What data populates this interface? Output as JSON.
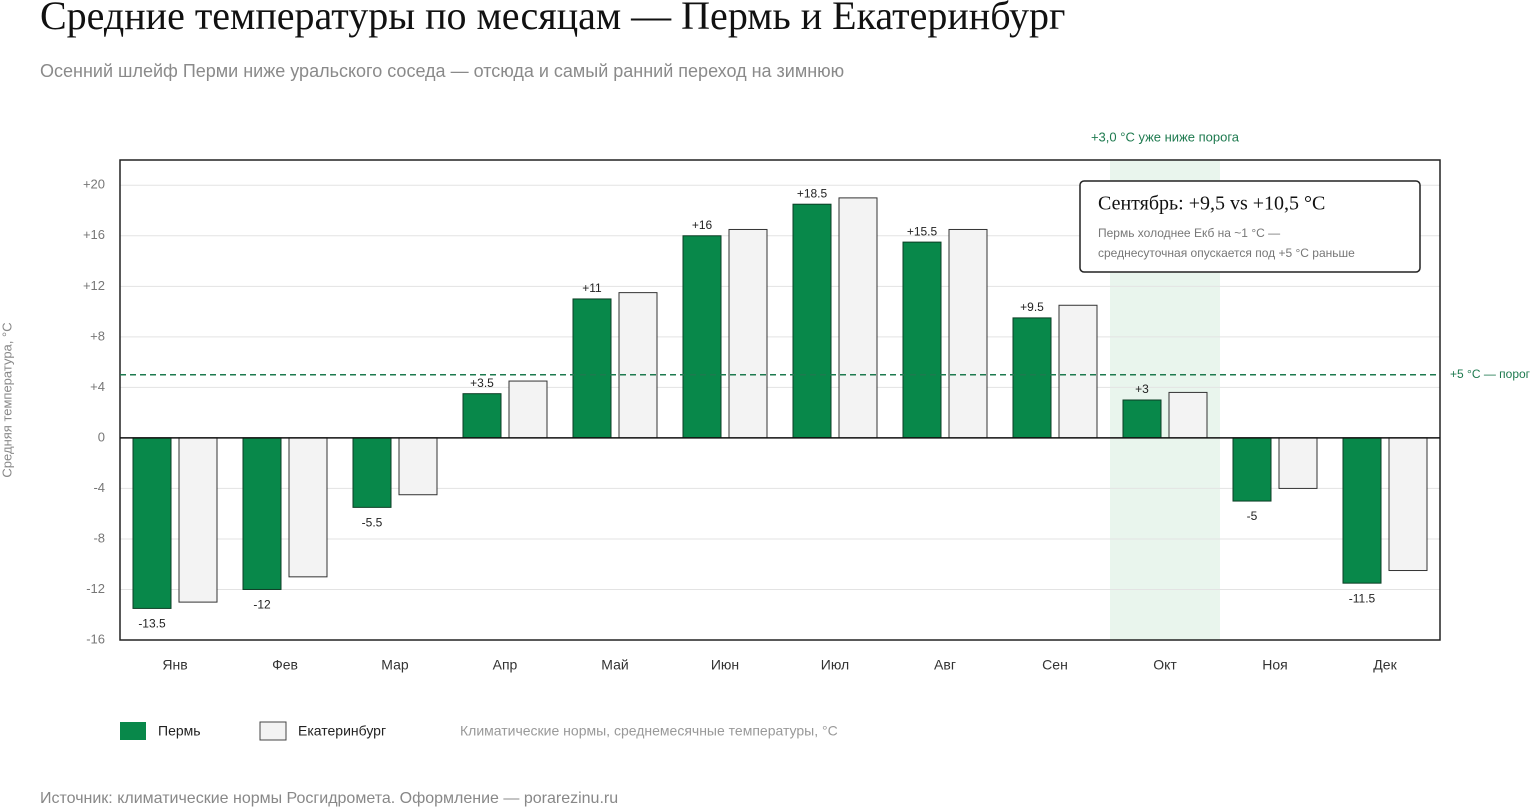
{
  "chart_data": {
    "type": "bar",
    "title": "Средние температуры по месяцам — Пермь и Екатеринбург",
    "subtitle": "Осенний шлейф Перми ниже уральского соседа — отсюда и самый ранний переход на зимнюю",
    "y_label": "Средняя температура, °C",
    "categories": [
      "Янв",
      "Фев",
      "Мар",
      "Апр",
      "Май",
      "Июн",
      "Июл",
      "Авг",
      "Сен",
      "Окт",
      "Ноя",
      "Дек"
    ],
    "series": [
      {
        "name": "Пермь",
        "color": "#08884a",
        "values": [
          -13.5,
          -12,
          -5.5,
          3.5,
          11,
          16,
          18.5,
          15.5,
          9.5,
          3,
          -5,
          -11.5
        ],
        "value_labels": [
          "-13.5",
          "-12",
          "-5.5",
          "+3.5",
          "+11",
          "+16",
          "+18.5",
          "+15.5",
          "+9.5",
          "+3",
          "-5",
          "-11.5"
        ]
      },
      {
        "name": "Екатеринбург",
        "color": "#f3f3f3",
        "values": [
          -13,
          -11,
          -4.5,
          4.5,
          11.5,
          16.5,
          19,
          16.5,
          10.5,
          3.6,
          -4,
          -10.5
        ]
      }
    ],
    "ylim": [
      -16,
      22
    ],
    "yticks": [
      -16,
      -12,
      -8,
      -4,
      0,
      {
        "value": 4,
        "label": "+4"
      },
      {
        "value": 8,
        "label": "+8"
      },
      {
        "value": 12,
        "label": "+12"
      },
      {
        "value": 16,
        "label": "+16"
      },
      {
        "value": 20,
        "label": "+20"
      }
    ],
    "grid": true,
    "threshold": {
      "value": 5,
      "label": "+5 °C — порог",
      "color": "#1e7a4f"
    },
    "highlight": {
      "category": "Окт",
      "label": "+3,0 °C уже ниже порога"
    },
    "callout": {
      "title": "Сентябрь: +9,5 vs +10,5 °C",
      "lines": [
        "Пермь холоднее Екб на ~1 °C —",
        "среднесуточная опускается под +5 °C раньше"
      ]
    },
    "legend_note": "Климатические нормы, среднемесячные температуры, °C",
    "source": "Источник: климатические нормы Росгидромета. Оформление — porarezinu.ru"
  }
}
